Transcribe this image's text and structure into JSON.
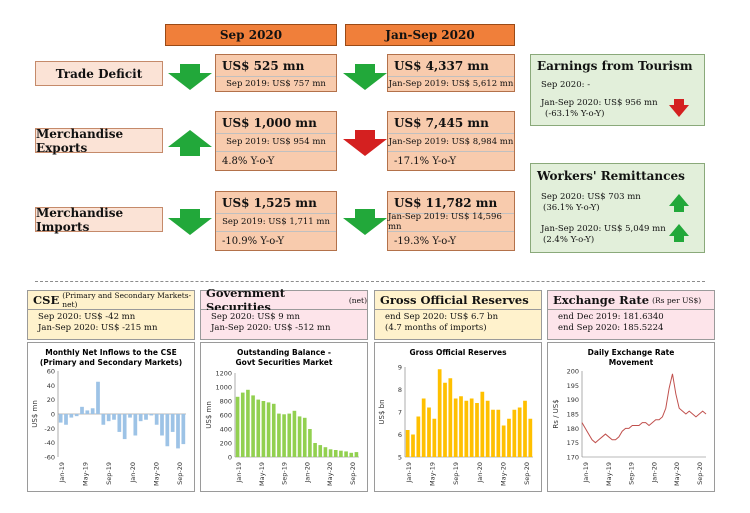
{
  "headers": {
    "sep": "Sep 2020",
    "jansep": "Jan-Sep 2020"
  },
  "rows": [
    {
      "label": "Trade Deficit",
      "sep": {
        "value": "US$ 525 mn",
        "prev": "Sep 2019: US$ 757 mn",
        "yoy": ""
      },
      "jansep": {
        "value": "US$ 4,337 mn",
        "prev": "Jan-Sep 2019: US$ 5,612 mn",
        "yoy": ""
      }
    },
    {
      "label": "Merchandise Exports",
      "sep": {
        "value": "US$ 1,000 mn",
        "prev": "Sep 2019: US$ 954 mn",
        "yoy": "4.8% Y-o-Y"
      },
      "jansep": {
        "value": "US$ 7,445 mn",
        "prev": "Jan-Sep 2019: US$ 8,984 mn",
        "yoy": "-17.1% Y-o-Y"
      }
    },
    {
      "label": "Merchandise Imports",
      "sep": {
        "value": "US$ 1,525 mn",
        "prev": "Sep 2019: US$ 1,711 mn",
        "yoy": "-10.9% Y-o-Y"
      },
      "jansep": {
        "value": "US$ 11,782 mn",
        "prev": "Jan-Sep 2019: US$ 14,596 mn",
        "yoy": "-19.3% Y-o-Y"
      }
    }
  ],
  "tourism": {
    "title": "Earnings from Tourism",
    "sep": "Sep 2020:  -",
    "jansep": "Jan-Sep 2020: US$ 956 mn",
    "jansep_yoy": "(-63.1% Y-o-Y)"
  },
  "remit": {
    "title": "Workers' Remittances",
    "sep": "Sep 2020: US$ 703 mn",
    "sep_yoy": "(36.1% Y-o-Y)",
    "jansep": "Jan-Sep 2020: US$ 5,049 mn",
    "jansep_yoy": "(2.4% Y-o-Y)"
  },
  "colors": {
    "up": "#22a83a",
    "down": "#d42020",
    "orange": "#f07f3a",
    "cse": "#fff2cc",
    "gov": "#fde4ea",
    "gor": "#fff2cc",
    "fx": "#fde4ea",
    "bar_blue": "#9dc3e6",
    "bar_green": "#92d050",
    "bar_yellow": "#ffc000",
    "line_red": "#c0504d"
  },
  "panels": {
    "cse": {
      "title": "CSE",
      "title_small": "(Primary and Secondary Markets-net)",
      "l1": "Sep 2020: US$ -42 mn",
      "l2": "Jan-Sep 2020: US$ -215 mn"
    },
    "gov": {
      "title": "Government Securities",
      "title_small": "(net)",
      "l1": "Sep 2020: US$ 9 mn",
      "l2": "Jan-Sep 2020: US$ -512 mn"
    },
    "gor": {
      "title": "Gross Official Reserves",
      "title_small": "",
      "l1": "end Sep 2020: US$ 6.7 bn",
      "l2": "(4.7 months of imports)"
    },
    "fx": {
      "title": "Exchange Rate",
      "title_small": "(Rs per US$)",
      "l1": "end Dec 2019: 181.6340",
      "l2": "end Sep 2020: 185.5224"
    }
  },
  "chart_data": [
    {
      "type": "bar",
      "title": "Monthly Net Inflows to the CSE (Primary and Secondary Markets)",
      "ylabel": "US$ mn",
      "ylim": [
        -60,
        60
      ],
      "yticks": [
        60,
        40,
        20,
        0,
        -20,
        -40,
        -60
      ],
      "xticklabels": [
        "Jan-19",
        "May-19",
        "Sep-19",
        "Jan-20",
        "May-20",
        "Sep-20"
      ],
      "values": [
        -12,
        -15,
        -5,
        -3,
        10,
        5,
        8,
        45,
        -15,
        -10,
        -8,
        -25,
        -35,
        -5,
        -30,
        -10,
        -8,
        -2,
        -15,
        -30,
        -45,
        -25,
        -48,
        -42
      ]
    },
    {
      "type": "bar",
      "title": "Outstanding Balance - Govt Securities Market",
      "ylabel": "US$ mn",
      "ylim": [
        0,
        1200
      ],
      "yticks": [
        1200,
        1000,
        800,
        600,
        400,
        200,
        0
      ],
      "xticklabels": [
        "Jan-19",
        "May-19",
        "Sep-19",
        "Jan-20",
        "May-20",
        "Sep-20"
      ],
      "values": [
        860,
        920,
        960,
        880,
        820,
        800,
        780,
        760,
        620,
        610,
        620,
        660,
        580,
        560,
        400,
        200,
        170,
        140,
        110,
        100,
        90,
        80,
        60,
        70
      ]
    },
    {
      "type": "bar",
      "title": "Gross Official Reserves",
      "ylabel": "US$ bn",
      "ylim": [
        5,
        9
      ],
      "yticks": [
        9,
        8,
        7,
        6,
        5
      ],
      "xticklabels": [
        "Jan-19",
        "May-19",
        "Sep-19",
        "Jan-20",
        "May-20",
        "Sep-20"
      ],
      "values": [
        6.2,
        6.0,
        6.8,
        7.6,
        7.2,
        6.7,
        8.9,
        8.3,
        8.5,
        7.6,
        7.7,
        7.5,
        7.6,
        7.4,
        7.9,
        7.5,
        7.1,
        7.1,
        6.4,
        6.7,
        7.1,
        7.2,
        7.5,
        6.7
      ]
    },
    {
      "type": "line",
      "title": "Daily Exchange Rate Movement",
      "ylabel": "Rs / US$",
      "ylim": [
        170,
        200
      ],
      "yticks": [
        200,
        195,
        190,
        185,
        180,
        175,
        170
      ],
      "xticklabels": [
        "Jan-19",
        "May-19",
        "Sep-19",
        "Jan-20",
        "May-20",
        "Sep-20"
      ],
      "values": [
        182,
        180,
        178,
        176,
        175,
        176,
        177,
        178,
        177,
        176,
        176,
        177,
        179,
        180,
        180,
        181,
        181,
        181,
        182,
        182,
        181,
        182,
        183,
        183,
        184,
        187,
        194,
        199,
        192,
        187,
        186,
        185,
        186,
        185,
        184,
        185,
        186,
        185
      ]
    }
  ]
}
